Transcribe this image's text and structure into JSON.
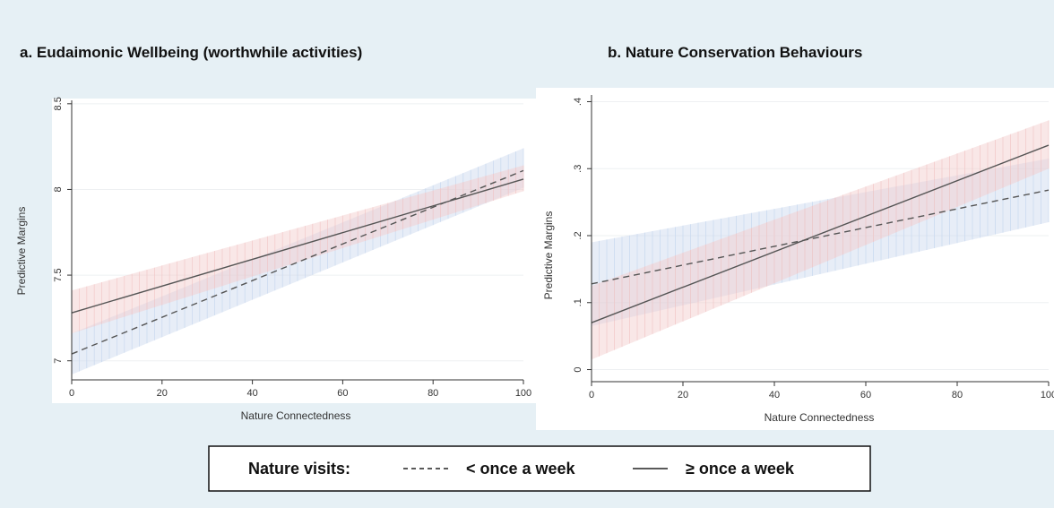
{
  "figure": {
    "legend": {
      "title": "Nature visits:",
      "entries": [
        {
          "label": "< once a week",
          "style": "dashed"
        },
        {
          "label": "≥ once a week",
          "style": "solid"
        }
      ]
    },
    "colors": {
      "background": "#e6f0f5",
      "line": "#555555",
      "ci_weekly": "#f2c9c9",
      "ci_less": "#c9d8ee"
    }
  },
  "chart_data": [
    {
      "type": "line",
      "title": "a. Eudaimonic Wellbeing (worthwhile activities)",
      "xlabel": "Nature Connectedness",
      "ylabel": "Predictive Margins",
      "xlim": [
        0,
        100
      ],
      "ylim": [
        6.92,
        8.52
      ],
      "xticks": [
        0,
        20,
        40,
        60,
        80,
        100
      ],
      "xtick_labels": [
        "0",
        "20",
        "40",
        "60",
        "80",
        "100"
      ],
      "yticks": [
        7,
        7.5,
        8,
        8.5
      ],
      "ytick_labels": [
        "7",
        "7.5",
        "8",
        "8.5"
      ],
      "grid": true,
      "series": [
        {
          "name": "< once a week",
          "style": "dashed",
          "x": [
            0,
            100
          ],
          "y": [
            7.04,
            8.11
          ],
          "ci_low": [
            6.92,
            8.01
          ],
          "ci_high": [
            7.16,
            8.24
          ]
        },
        {
          "name": "≥ once a week",
          "style": "solid",
          "x": [
            0,
            100
          ],
          "y": [
            7.28,
            8.06
          ],
          "ci_low": [
            7.16,
            7.99
          ],
          "ci_high": [
            7.41,
            8.14
          ]
        }
      ]
    },
    {
      "type": "line",
      "title": "b. Nature Conservation Behaviours",
      "xlabel": "Nature Connectedness",
      "ylabel": "Predictive Margins",
      "xlim": [
        0,
        100
      ],
      "ylim": [
        -0.01,
        0.41
      ],
      "xticks": [
        0,
        20,
        40,
        60,
        80,
        100
      ],
      "xtick_labels": [
        "0",
        "20",
        "40",
        "60",
        "80",
        "100"
      ],
      "yticks": [
        0,
        0.1,
        0.2,
        0.3,
        0.4
      ],
      "ytick_labels": [
        "0",
        ".1",
        ".2",
        ".3",
        ".4"
      ],
      "grid": true,
      "series": [
        {
          "name": "< once a week",
          "style": "dashed",
          "x": [
            0,
            100
          ],
          "y": [
            0.128,
            0.268
          ],
          "ci_low": [
            0.065,
            0.22
          ],
          "ci_high": [
            0.19,
            0.315
          ]
        },
        {
          "name": "≥ once a week",
          "style": "solid",
          "x": [
            0,
            100
          ],
          "y": [
            0.07,
            0.335
          ],
          "ci_low": [
            0.015,
            0.3
          ],
          "ci_high": [
            0.125,
            0.372
          ]
        }
      ]
    }
  ]
}
